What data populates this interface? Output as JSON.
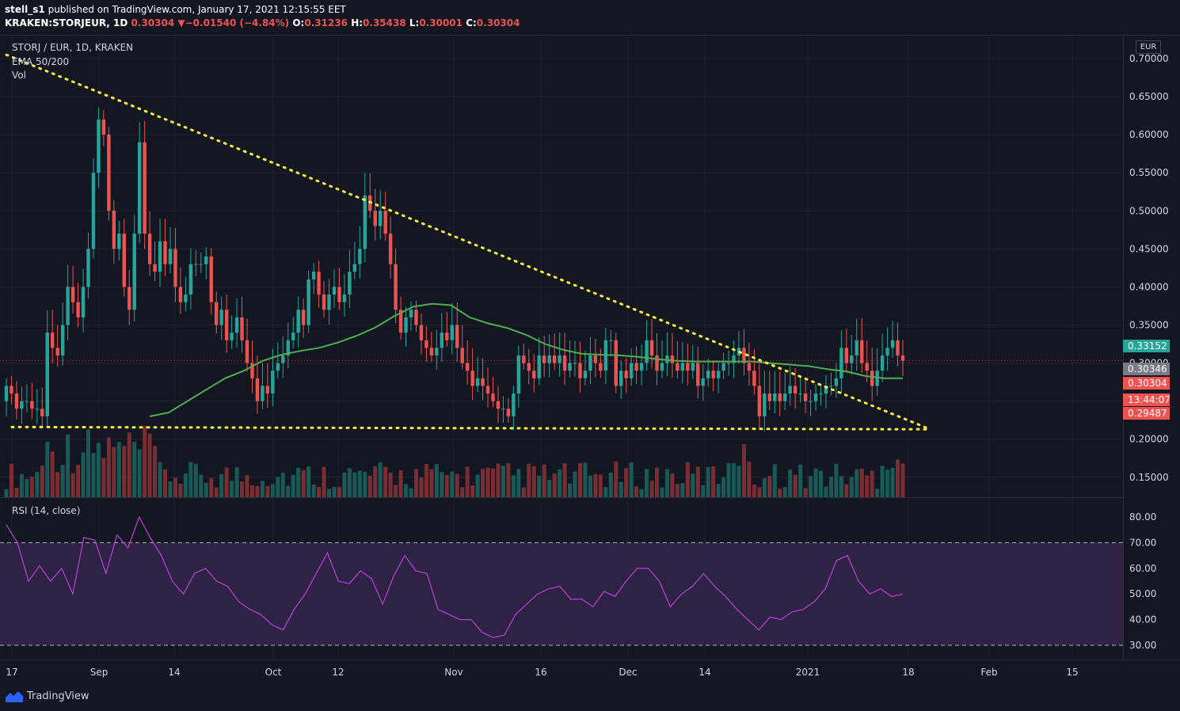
{
  "header": {
    "author": "stell_s1",
    "published_text": "published on TradingView.com, January 17, 2021 12:15:55 EET",
    "symbol": "KRAKEN:STORJEUR, 1D",
    "last": "0.30304",
    "change": "−0.01540 (−4.84%)",
    "o_label": "O:",
    "o": "0.31236",
    "h_label": "H:",
    "h": "0.35438",
    "l_label": "L:",
    "l": "0.30001",
    "c_label": "C:",
    "c": "0.30304"
  },
  "legend": {
    "title": "STORJ / EUR, 1D, KRAKEN",
    "ema": "EMA 50/200",
    "vol": "Vol",
    "rsi": "RSI (14, close)"
  },
  "currency": "EUR",
  "price_labels": [
    {
      "text": "0.33152",
      "value": 0.33152,
      "color": "#26a69a"
    },
    {
      "text": "0.30346",
      "value": 0.30346,
      "color": "#787b86"
    },
    {
      "text": "0.30304",
      "value": 0.30304,
      "color": "#ef5350"
    },
    {
      "text": "13:44:07",
      "value": 0.2819,
      "color": "#ef5350"
    },
    {
      "text": "0.29487",
      "value": 0.29487,
      "color": "#ef5350"
    }
  ],
  "footer": {
    "brand": "TradingView"
  },
  "colors": {
    "up": "#26a69a",
    "down": "#ef5350",
    "ema": "#4caf50",
    "rsi": "#b23fcf",
    "trendline": "#ffeb3b",
    "background": "#131722"
  },
  "chart_data": [
    {
      "type": "candlestick",
      "title": "STORJ / EUR, 1D, KRAKEN",
      "ylim": [
        0.14,
        0.71
      ],
      "y_ticks": [
        "0.70000",
        "0.65000",
        "0.60000",
        "0.55000",
        "0.50000",
        "0.45000",
        "0.40000",
        "0.35000",
        "0.30000",
        "0.25000",
        "0.20000",
        "0.15000"
      ],
      "x_ticks": [
        "17",
        "Sep",
        "14",
        "Oct",
        "12",
        "Nov",
        "16",
        "Dec",
        "14",
        "2021",
        "18",
        "Feb",
        "15"
      ],
      "closes": [
        0.27,
        0.26,
        0.24,
        0.25,
        0.25,
        0.24,
        0.24,
        0.23,
        0.34,
        0.32,
        0.31,
        0.35,
        0.4,
        0.38,
        0.36,
        0.4,
        0.45,
        0.55,
        0.62,
        0.6,
        0.5,
        0.45,
        0.47,
        0.4,
        0.37,
        0.47,
        0.59,
        0.47,
        0.43,
        0.42,
        0.46,
        0.43,
        0.45,
        0.4,
        0.38,
        0.39,
        0.43,
        0.43,
        0.43,
        0.44,
        0.38,
        0.35,
        0.37,
        0.33,
        0.34,
        0.36,
        0.33,
        0.3,
        0.28,
        0.25,
        0.27,
        0.26,
        0.29,
        0.3,
        0.31,
        0.33,
        0.34,
        0.37,
        0.35,
        0.41,
        0.42,
        0.39,
        0.37,
        0.39,
        0.4,
        0.38,
        0.39,
        0.42,
        0.43,
        0.45,
        0.52,
        0.5,
        0.48,
        0.5,
        0.47,
        0.43,
        0.37,
        0.34,
        0.36,
        0.37,
        0.35,
        0.33,
        0.32,
        0.31,
        0.32,
        0.34,
        0.33,
        0.35,
        0.32,
        0.3,
        0.29,
        0.27,
        0.28,
        0.27,
        0.26,
        0.25,
        0.24,
        0.24,
        0.23,
        0.26,
        0.31,
        0.3,
        0.29,
        0.28,
        0.31,
        0.3,
        0.31,
        0.3,
        0.31,
        0.29,
        0.3,
        0.3,
        0.28,
        0.29,
        0.31,
        0.3,
        0.29,
        0.33,
        0.33,
        0.27,
        0.29,
        0.28,
        0.3,
        0.29,
        0.3,
        0.33,
        0.31,
        0.29,
        0.3,
        0.31,
        0.3,
        0.29,
        0.3,
        0.29,
        0.3,
        0.27,
        0.28,
        0.29,
        0.28,
        0.29,
        0.3,
        0.3,
        0.31,
        0.32,
        0.3,
        0.29,
        0.27,
        0.23,
        0.26,
        0.25,
        0.26,
        0.25,
        0.26,
        0.27,
        0.26,
        0.26,
        0.25,
        0.25,
        0.26,
        0.26,
        0.27,
        0.27,
        0.28,
        0.32,
        0.3,
        0.31,
        0.33,
        0.3,
        0.29,
        0.27,
        0.29,
        0.31,
        0.32,
        0.33,
        0.31,
        0.30304
      ],
      "ema50": [
        0.23,
        0.235,
        0.25,
        0.265,
        0.28,
        0.29,
        0.303,
        0.311,
        0.316,
        0.32,
        0.327,
        0.336,
        0.347,
        0.362,
        0.374,
        0.378,
        0.376,
        0.36,
        0.352,
        0.346,
        0.337,
        0.325,
        0.317,
        0.312,
        0.311,
        0.31,
        0.308,
        0.305,
        0.303,
        0.302,
        0.302,
        0.302,
        0.302,
        0.3,
        0.298,
        0.296,
        0.292,
        0.289,
        0.283,
        0.28,
        0.28
      ],
      "rsi_ylim": [
        25,
        86
      ],
      "rsi_ticks": [
        "80.00",
        "70.00",
        "60.00",
        "50.00",
        "40.00",
        "30.00"
      ],
      "rsi_bands": [
        30,
        70
      ],
      "rsi": [
        77,
        70,
        55,
        61,
        55,
        60,
        50,
        72,
        71,
        58,
        73,
        68,
        80,
        72,
        65,
        55,
        50,
        58,
        60,
        55,
        53,
        47,
        44,
        42,
        38,
        36,
        44,
        50,
        58,
        66,
        55,
        54,
        59,
        56,
        46,
        57,
        65,
        59,
        58,
        44,
        42,
        40,
        40,
        35,
        33,
        34,
        42,
        46,
        50,
        52,
        53,
        48,
        48,
        45,
        51,
        49,
        55,
        60,
        60,
        55,
        45,
        50,
        53,
        58,
        53,
        49,
        44,
        40,
        36,
        41,
        40,
        43,
        44,
        47,
        52,
        63,
        65,
        55,
        50,
        52,
        49,
        50
      ]
    }
  ]
}
